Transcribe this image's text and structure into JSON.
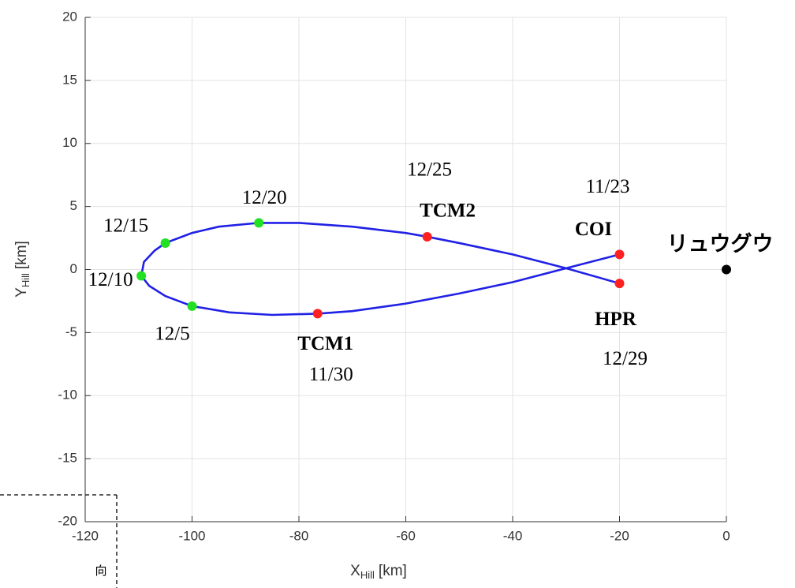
{
  "chart_data": {
    "type": "orbit",
    "xlabel": {
      "symbol": "X",
      "subscript": "Hill",
      "unit": "[km]"
    },
    "ylabel": {
      "symbol": "Y",
      "subscript": "Hill",
      "unit": "[km]"
    },
    "xlim": [
      -120,
      0
    ],
    "xticks": [
      -120,
      -100,
      -80,
      -60,
      -40,
      -20,
      0
    ],
    "ylim": [
      -20,
      20
    ],
    "yticks": [
      -20,
      -15,
      -10,
      -5,
      0,
      5,
      10,
      15,
      20
    ],
    "grid": true,
    "line": {
      "color": "#2121e6",
      "x": [
        -20,
        -30,
        -40,
        -50,
        -60,
        -70,
        -76.5,
        -85,
        -93,
        -100,
        -105,
        -108,
        -109.5,
        -109,
        -107,
        -105,
        -100,
        -95,
        -87.5,
        -80,
        -70,
        -60,
        -56,
        -50,
        -40,
        -30,
        -20
      ],
      "y": [
        1.2,
        0.1,
        -1.0,
        -1.9,
        -2.7,
        -3.3,
        -3.5,
        -3.6,
        -3.4,
        -2.9,
        -2.1,
        -1.3,
        -0.5,
        0.6,
        1.5,
        2.1,
        2.9,
        3.4,
        3.7,
        3.7,
        3.4,
        2.9,
        2.6,
        2.1,
        1.2,
        0.1,
        -1.1
      ]
    },
    "markers": [
      {
        "label": "COI",
        "date": "11/23",
        "x": -20,
        "y": 1.2,
        "color": "#ff2020"
      },
      {
        "label": "TCM1",
        "date": "11/30",
        "x": -76.5,
        "y": -3.5,
        "color": "#ff2020"
      },
      {
        "date": "12/5",
        "x": -100,
        "y": -2.9,
        "color": "#22e022"
      },
      {
        "date": "12/10",
        "x": -109.5,
        "y": -0.5,
        "color": "#22e022"
      },
      {
        "date": "12/15",
        "x": -105,
        "y": 2.1,
        "color": "#22e022"
      },
      {
        "date": "12/20",
        "x": -87.5,
        "y": 3.7,
        "color": "#22e022"
      },
      {
        "label": "TCM2",
        "date": "12/25",
        "x": -56,
        "y": 2.6,
        "color": "#ff2020"
      },
      {
        "label": "HPR",
        "date": "12/29",
        "x": -20,
        "y": -1.1,
        "color": "#ff2020"
      },
      {
        "label": "リュウグウ",
        "x": 0,
        "y": 0,
        "color": "#000000"
      }
    ],
    "note": "向"
  }
}
